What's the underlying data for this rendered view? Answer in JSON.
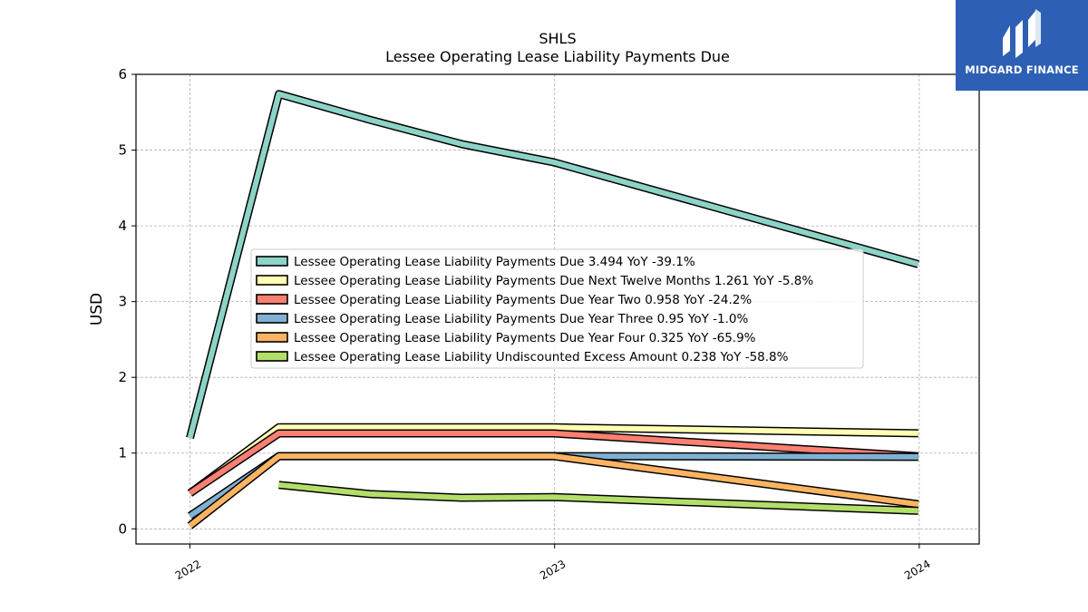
{
  "logo": {
    "text": "MIDGARD FINANCE"
  },
  "chart_data": {
    "type": "line",
    "title": "SHLS",
    "subtitle": "Lessee Operating Lease Liability Payments Due",
    "xlabel": "",
    "ylabel": "USD",
    "ylim": [
      -0.2,
      6.0
    ],
    "xlim": [
      "2021-11-08",
      "2024-03-01"
    ],
    "x_ticks": [
      "2022",
      "2023",
      "2024"
    ],
    "y_ticks": [
      "0",
      "1",
      "2",
      "3",
      "4",
      "5",
      "6"
    ],
    "grid": true,
    "legend_position": "center",
    "series": [
      {
        "name": "Lessee Operating Lease Liability Payments Due",
        "legend": "Lessee Operating Lease Liability Payments Due  3.494 YoY -39.1%",
        "color": "#8dd3c7",
        "points": [
          [
            "2022-01-01",
            1.2
          ],
          [
            "2022-03-31",
            5.74
          ],
          [
            "2022-06-30",
            5.4
          ],
          [
            "2022-09-30",
            5.08
          ],
          [
            "2022-12-31",
            4.84
          ],
          [
            "2023-12-31",
            3.494
          ]
        ]
      },
      {
        "name": "Lessee Operating Lease Liability Payments Due Next Twelve Months",
        "legend": "Lessee Operating Lease Liability Payments Due Next Twelve Months  1.261 YoY -5.8%",
        "color": "#ffffb3",
        "points": [
          [
            "2022-01-01",
            0.47
          ],
          [
            "2022-03-31",
            1.34
          ],
          [
            "2022-06-30",
            1.34
          ],
          [
            "2022-09-30",
            1.34
          ],
          [
            "2022-12-31",
            1.34
          ],
          [
            "2023-12-31",
            1.261
          ]
        ]
      },
      {
        "name": "Lessee Operating Lease Liability Payments Due Year Two",
        "legend": "Lessee Operating Lease Liability Payments Due Year Two  0.958 YoY -24.2%",
        "color": "#fb8072",
        "points": [
          [
            "2022-01-01",
            0.47
          ],
          [
            "2022-03-31",
            1.26
          ],
          [
            "2022-06-30",
            1.26
          ],
          [
            "2022-09-30",
            1.26
          ],
          [
            "2022-12-31",
            1.26
          ],
          [
            "2023-12-31",
            0.958
          ]
        ]
      },
      {
        "name": "Lessee Operating Lease Liability Payments Due Year Three",
        "legend": "Lessee Operating Lease Liability Payments Due Year Three  0.95 YoY -1.0%",
        "color": "#80b1d3",
        "points": [
          [
            "2022-01-01",
            0.17
          ],
          [
            "2022-03-31",
            0.96
          ],
          [
            "2022-06-30",
            0.96
          ],
          [
            "2022-09-30",
            0.96
          ],
          [
            "2022-12-31",
            0.96
          ],
          [
            "2023-12-31",
            0.95
          ]
        ]
      },
      {
        "name": "Lessee Operating Lease Liability Payments Due Year Four",
        "legend": "Lessee Operating Lease Liability Payments Due Year Four  0.325 YoY -65.9%",
        "color": "#fdb462",
        "points": [
          [
            "2022-01-01",
            0.04
          ],
          [
            "2022-03-31",
            0.96
          ],
          [
            "2022-06-30",
            0.96
          ],
          [
            "2022-09-30",
            0.96
          ],
          [
            "2022-12-31",
            0.96
          ],
          [
            "2023-12-31",
            0.325
          ]
        ]
      },
      {
        "name": "Lessee Operating Lease Liability Undiscounted Excess Amount",
        "legend": "Lessee Operating Lease Liability Undiscounted Excess Amount  0.238 YoY -58.8%",
        "color": "#b3de69",
        "points": [
          [
            "2022-03-31",
            0.58
          ],
          [
            "2022-06-30",
            0.46
          ],
          [
            "2022-09-30",
            0.41
          ],
          [
            "2022-12-31",
            0.42
          ],
          [
            "2023-12-31",
            0.238
          ]
        ]
      }
    ]
  }
}
